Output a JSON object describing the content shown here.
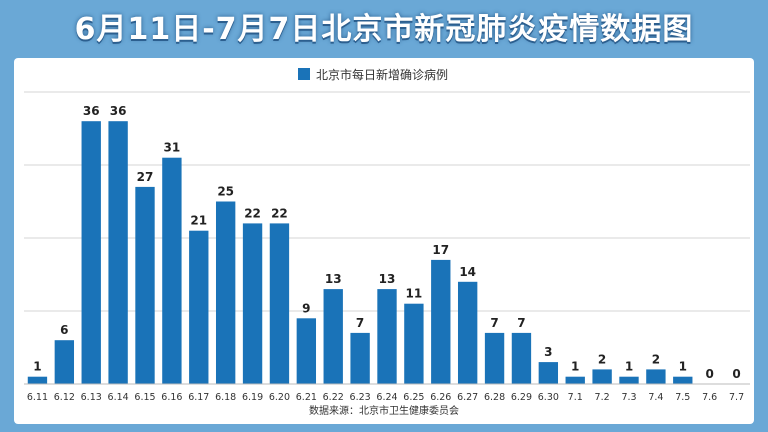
{
  "title": "6月11日-7月7日北京市新冠肺炎疫情数据图",
  "source": "数据来源：北京市卫生健康委员会",
  "colors": {
    "bar": "#1a73b8",
    "background": "#6aa8d6",
    "grid": "#d6d6d6"
  },
  "chart_data": {
    "type": "bar",
    "title": "6月11日-7月7日北京市新冠肺炎疫情数据图",
    "legend": "北京市每日新增确诊病例",
    "legend_position": "top-center",
    "grid": true,
    "categories": [
      "6.11",
      "6.12",
      "6.13",
      "6.14",
      "6.15",
      "6.16",
      "6.17",
      "6.18",
      "6.19",
      "6.20",
      "6.21",
      "6.22",
      "6.23",
      "6.24",
      "6.25",
      "6.26",
      "6.27",
      "6.28",
      "6.29",
      "6.30",
      "7.1",
      "7.2",
      "7.3",
      "7.4",
      "7.5",
      "7.6",
      "7.7"
    ],
    "series": [
      {
        "name": "北京市每日新增确诊病例",
        "values": [
          1,
          6,
          36,
          36,
          27,
          31,
          21,
          25,
          22,
          22,
          9,
          13,
          7,
          13,
          11,
          17,
          14,
          7,
          7,
          3,
          1,
          2,
          1,
          2,
          1,
          0,
          0
        ]
      }
    ],
    "ylim": [
      0,
      40
    ]
  }
}
